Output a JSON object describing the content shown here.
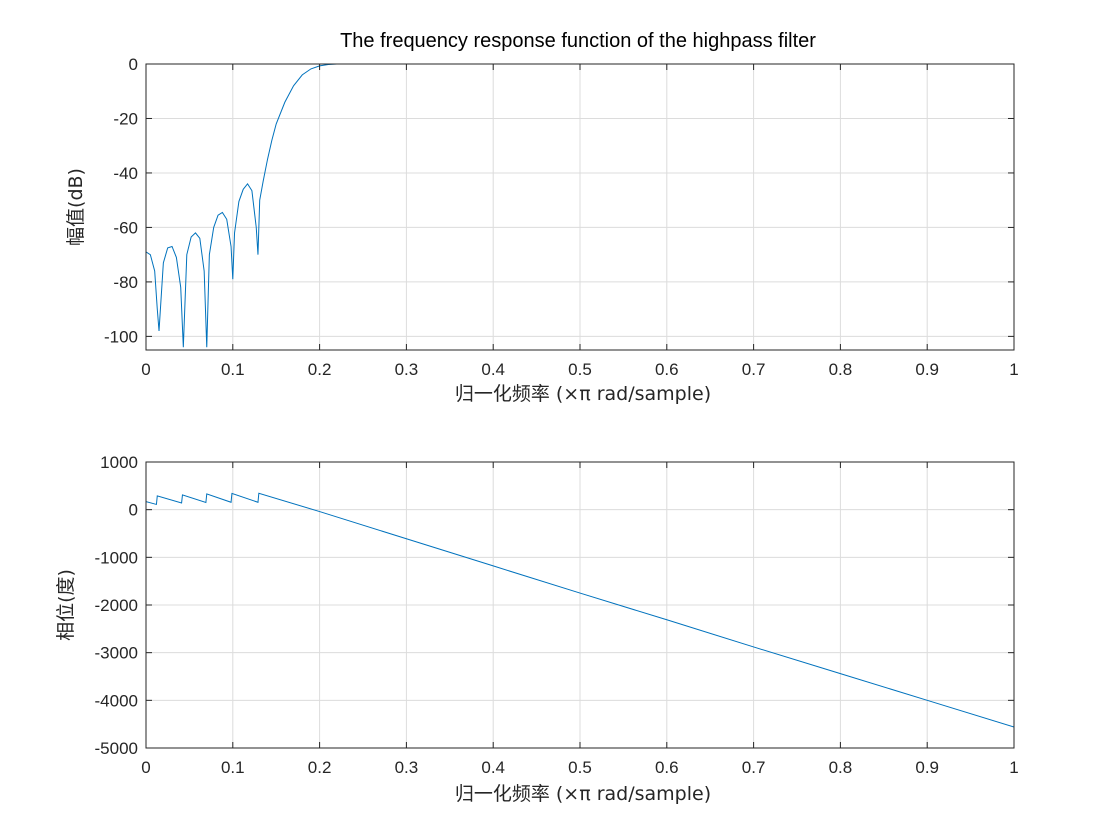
{
  "figure_title": "The frequency response function of the highpass filter",
  "colors": {
    "line": "#0072BD",
    "grid": "#DCDCDC",
    "axis": "#262626",
    "background": "#FFFFFF"
  },
  "chart_data": [
    {
      "type": "line",
      "title": "The frequency response function of the highpass filter",
      "xlabel": "归一化频率  (×π rad/sample)",
      "ylabel": "幅值(dB)",
      "xlim": [
        0,
        1
      ],
      "ylim": [
        -105,
        0
      ],
      "xticks": [
        0,
        0.1,
        0.2,
        0.3,
        0.4,
        0.5,
        0.6,
        0.7,
        0.8,
        0.9,
        1
      ],
      "xtick_labels": [
        "0",
        "0.1",
        "0.2",
        "0.3",
        "0.4",
        "0.5",
        "0.6",
        "0.7",
        "0.8",
        "0.9",
        "1"
      ],
      "yticks": [
        0,
        -20,
        -40,
        -60,
        -80,
        -100
      ],
      "ytick_labels": [
        "0",
        "-20",
        "-40",
        "-60",
        "-80",
        "-100"
      ],
      "grid": true,
      "series": [
        {
          "x": [
            0,
            0.005,
            0.01,
            0.013,
            0.015,
            0.02,
            0.025,
            0.03,
            0.035,
            0.04,
            0.043,
            0.047,
            0.052,
            0.057,
            0.062,
            0.067,
            0.07,
            0.073,
            0.078,
            0.083,
            0.088,
            0.093,
            0.098,
            0.1,
            0.102,
            0.107,
            0.112,
            0.117,
            0.122,
            0.127,
            0.129,
            0.131,
            0.135,
            0.14,
            0.145,
            0.15,
            0.16,
            0.17,
            0.18,
            0.19,
            0.2,
            0.21,
            0.22,
            0.23,
            0.24,
            0.26,
            0.3,
            0.4,
            0.5,
            0.6,
            0.7,
            0.8,
            0.9,
            1.0
          ],
          "y": [
            -69,
            -70,
            -76,
            -90,
            -98,
            -73,
            -67.5,
            -67,
            -71,
            -82,
            -104,
            -70,
            -63.5,
            -62,
            -64,
            -76,
            -104,
            -70,
            -60,
            -55.5,
            -54.5,
            -57,
            -67,
            -79,
            -62,
            -50.5,
            -46,
            -44,
            -46.5,
            -60,
            -70,
            -50,
            -43,
            -35,
            -28,
            -22,
            -14,
            -8,
            -4,
            -1.8,
            -0.7,
            -0.2,
            0,
            0,
            0,
            0,
            0,
            0,
            0,
            0,
            0,
            0,
            0,
            0
          ]
        }
      ]
    },
    {
      "type": "line",
      "title": "",
      "xlabel": "归一化频率  (×π rad/sample)",
      "ylabel": "相位(度)",
      "xlim": [
        0,
        1
      ],
      "ylim": [
        -5000,
        1000
      ],
      "xticks": [
        0,
        0.1,
        0.2,
        0.3,
        0.4,
        0.5,
        0.6,
        0.7,
        0.8,
        0.9,
        1
      ],
      "xtick_labels": [
        "0",
        "0.1",
        "0.2",
        "0.3",
        "0.4",
        "0.5",
        "0.6",
        "0.7",
        "0.8",
        "0.9",
        "1"
      ],
      "yticks": [
        1000,
        0,
        -1000,
        -2000,
        -3000,
        -4000,
        -5000
      ],
      "ytick_labels": [
        "1000",
        "0",
        "-1000",
        "-2000",
        "-3000",
        "-4000",
        "-5000"
      ],
      "grid": true,
      "series": [
        {
          "x": [
            0,
            0.012,
            0.013,
            0.041,
            0.042,
            0.069,
            0.07,
            0.098,
            0.099,
            0.129,
            0.13,
            0.2,
            0.3,
            0.4,
            0.5,
            0.6,
            0.7,
            0.8,
            0.9,
            1.0
          ],
          "y": [
            170,
            110,
            290,
            140,
            310,
            150,
            330,
            155,
            340,
            155,
            345,
            -40,
            -610,
            -1180,
            -1750,
            -2310,
            -2880,
            -3440,
            -4000,
            -4560
          ]
        }
      ]
    }
  ]
}
